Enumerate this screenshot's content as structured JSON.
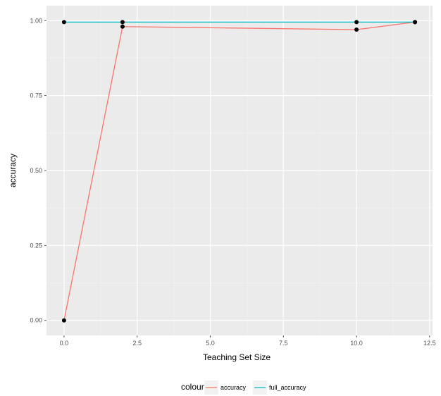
{
  "chart_data": {
    "type": "line",
    "title": "",
    "xlabel": "Teaching Set Size",
    "ylabel": "accuracy",
    "xlim": [
      -0.6,
      12.6
    ],
    "ylim": [
      -0.05,
      1.05
    ],
    "x_ticks": [
      {
        "value": 0.0,
        "label": "0.0"
      },
      {
        "value": 2.5,
        "label": "2.5"
      },
      {
        "value": 5.0,
        "label": "5.0"
      },
      {
        "value": 7.5,
        "label": "7.5"
      },
      {
        "value": 10.0,
        "label": "10.0"
      },
      {
        "value": 12.5,
        "label": "12.5"
      }
    ],
    "y_ticks": [
      {
        "value": 0.0,
        "label": "0.00"
      },
      {
        "value": 0.25,
        "label": "0.25"
      },
      {
        "value": 0.5,
        "label": "0.50"
      },
      {
        "value": 0.75,
        "label": "0.75"
      },
      {
        "value": 1.0,
        "label": "1.00"
      }
    ],
    "grid": true,
    "legend": {
      "title": "colour",
      "position": "bottom"
    },
    "series": [
      {
        "name": "accuracy",
        "color": "#F8766D",
        "x": [
          0,
          2,
          10,
          12
        ],
        "y": [
          0.0,
          0.98,
          0.97,
          0.995
        ]
      },
      {
        "name": "full_accuracy",
        "color": "#00BFC4",
        "x": [
          0,
          2,
          10,
          12
        ],
        "y": [
          0.995,
          0.995,
          0.995,
          0.995
        ]
      }
    ],
    "point_color": "#000000"
  }
}
